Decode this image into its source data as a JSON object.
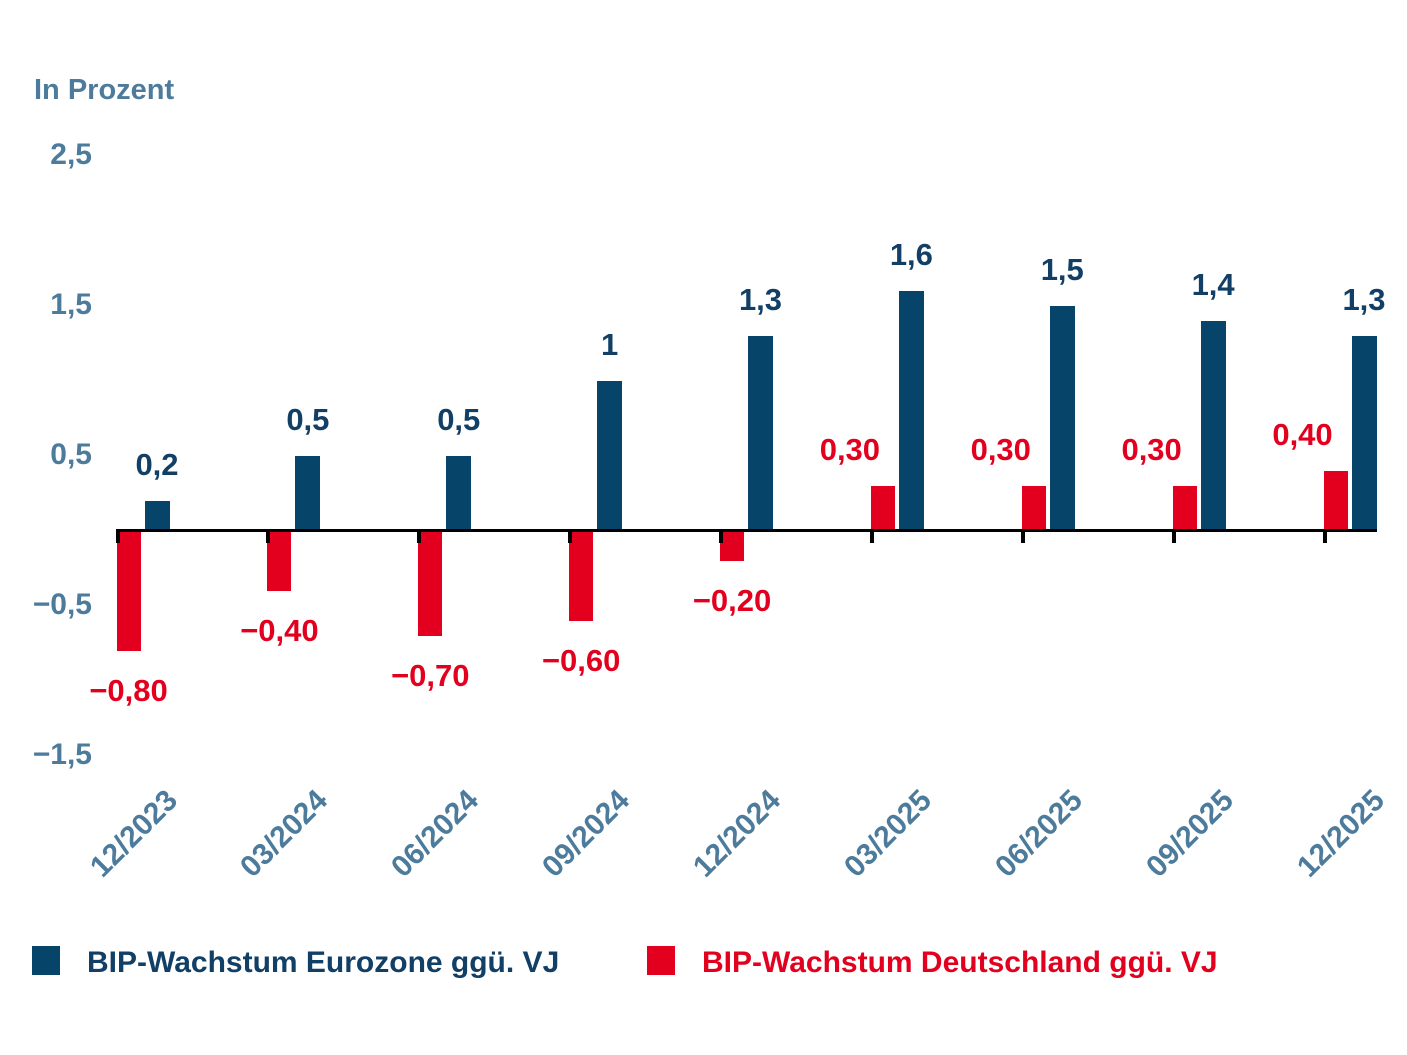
{
  "chart_data": {
    "type": "bar",
    "title": "",
    "ylabel": "In Prozent",
    "xlabel": "",
    "categories": [
      "12/2023",
      "03/2024",
      "06/2024",
      "09/2024",
      "12/2024",
      "03/2025",
      "06/2025",
      "09/2025",
      "12/2025"
    ],
    "series": [
      {
        "name": "BIP-Wachstum Eurozone ggü. VJ",
        "color": "#074469",
        "label_color": "#123f66",
        "position": "right",
        "values": [
          0.2,
          0.5,
          0.5,
          1,
          1.3,
          1.6,
          1.5,
          1.4,
          1.3
        ],
        "labels": [
          "0,2",
          "0,5",
          "0,5",
          "1",
          "1,3",
          "1,6",
          "1,5",
          "1,4",
          "1,3"
        ]
      },
      {
        "name": "BIP-Wachstum Deutschland ggü. VJ",
        "color": "#e2001e",
        "label_color": "#e2001e",
        "position": "left",
        "values": [
          -0.8,
          -0.4,
          -0.7,
          -0.6,
          -0.2,
          0.3,
          0.3,
          0.3,
          0.4
        ],
        "labels": [
          "−0,80",
          "−0,40",
          "−0,70",
          "−0,60",
          "−0,20",
          "0,30",
          "0,30",
          "0,30",
          "0,40"
        ]
      }
    ],
    "y_axis": {
      "tick_values": [
        2.5,
        1.5,
        0.5,
        -0.5,
        -1.5
      ],
      "tick_labels": [
        "2,5",
        "1,5",
        "0,5",
        "−0,5",
        "−1,5"
      ],
      "ylim": [
        -1.75,
        2.75
      ],
      "grid": false
    },
    "legend_position": "bottom",
    "colors": {
      "axis": "#000000",
      "axis_tick_text": "#4d7b9c",
      "eurozone_bar": "#074469",
      "deutschland_bar": "#e2001e"
    }
  }
}
